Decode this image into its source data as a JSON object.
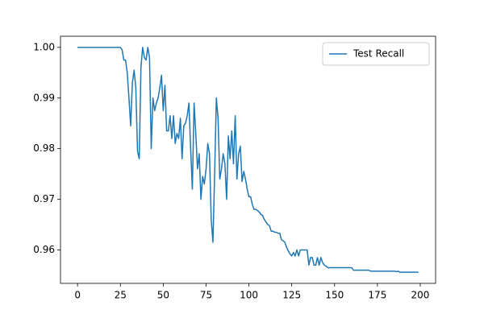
{
  "chart_data": {
    "type": "line",
    "x": [
      0,
      1,
      2,
      3,
      4,
      5,
      6,
      7,
      8,
      9,
      10,
      11,
      12,
      13,
      14,
      15,
      16,
      17,
      18,
      19,
      20,
      21,
      22,
      23,
      24,
      25,
      26,
      27,
      28,
      29,
      30,
      31,
      32,
      33,
      34,
      35,
      36,
      37,
      38,
      39,
      40,
      41,
      42,
      43,
      44,
      45,
      46,
      47,
      48,
      49,
      50,
      51,
      52,
      53,
      54,
      55,
      56,
      57,
      58,
      59,
      60,
      61,
      62,
      63,
      64,
      65,
      66,
      67,
      68,
      69,
      70,
      71,
      72,
      73,
      74,
      75,
      76,
      77,
      78,
      79,
      80,
      81,
      82,
      83,
      84,
      85,
      86,
      87,
      88,
      89,
      90,
      91,
      92,
      93,
      94,
      95,
      96,
      97,
      98,
      99,
      100,
      101,
      102,
      103,
      104,
      105,
      106,
      107,
      108,
      109,
      110,
      111,
      112,
      113,
      114,
      115,
      116,
      117,
      118,
      119,
      120,
      121,
      122,
      123,
      124,
      125,
      126,
      127,
      128,
      129,
      130,
      131,
      132,
      133,
      134,
      135,
      136,
      137,
      138,
      139,
      140,
      141,
      142,
      143,
      144,
      145,
      146,
      147,
      148,
      149,
      150,
      151,
      152,
      153,
      154,
      155,
      156,
      157,
      158,
      159,
      160,
      161,
      162,
      163,
      164,
      165,
      166,
      167,
      168,
      169,
      170,
      171,
      172,
      173,
      174,
      175,
      176,
      177,
      178,
      179,
      180,
      181,
      182,
      183,
      184,
      185,
      186,
      187,
      188,
      189,
      190,
      191,
      192,
      193,
      194,
      195,
      196,
      197,
      198,
      199
    ],
    "series": [
      {
        "name": "Test Recall",
        "color": "#1f77b4",
        "values": [
          1,
          1,
          1,
          1,
          1,
          1,
          1,
          1,
          1,
          1,
          1,
          1,
          1,
          1,
          1,
          1,
          1,
          1,
          1,
          1,
          1,
          1,
          1,
          1,
          1,
          1,
          0.9995,
          0.9975,
          0.9975,
          0.995,
          0.99,
          0.9845,
          0.993,
          0.9955,
          0.992,
          0.9795,
          0.978,
          0.996,
          1,
          0.998,
          0.9975,
          1,
          0.998,
          0.98,
          0.99,
          0.9875,
          0.989,
          0.99,
          0.992,
          0.9945,
          0.9875,
          0.9925,
          0.9835,
          0.9835,
          0.9865,
          0.982,
          0.9865,
          0.981,
          0.983,
          0.982,
          0.986,
          0.978,
          0.9845,
          0.985,
          0.9865,
          0.989,
          0.98,
          0.972,
          0.989,
          0.983,
          0.976,
          0.979,
          0.97,
          0.9745,
          0.973,
          0.976,
          0.981,
          0.979,
          0.966,
          0.9615,
          0.975,
          0.99,
          0.986,
          0.974,
          0.976,
          0.979,
          0.977,
          0.97,
          0.9825,
          0.978,
          0.9835,
          0.977,
          0.9865,
          0.974,
          0.979,
          0.9805,
          0.9735,
          0.9755,
          0.974,
          0.972,
          0.9705,
          0.9705,
          0.969,
          0.968,
          0.968,
          0.9678,
          0.9675,
          0.967,
          0.9668,
          0.966,
          0.9655,
          0.965,
          0.9648,
          0.9637,
          0.9637,
          0.9635,
          0.9635,
          0.9633,
          0.9633,
          0.962,
          0.9618,
          0.9615,
          0.9605,
          0.9598,
          0.9592,
          0.9588,
          0.9595,
          0.9588,
          0.96,
          0.9588,
          0.96,
          0.96,
          0.96,
          0.96,
          0.96,
          0.957,
          0.9585,
          0.9585,
          0.957,
          0.957,
          0.9585,
          0.957,
          0.9585,
          0.9575,
          0.957,
          0.9568,
          0.9565,
          0.9565,
          0.9565,
          0.9565,
          0.9565,
          0.9565,
          0.9565,
          0.9565,
          0.9565,
          0.9565,
          0.9565,
          0.9565,
          0.9565,
          0.9565,
          0.9565,
          0.956,
          0.956,
          0.956,
          0.956,
          0.956,
          0.956,
          0.956,
          0.956,
          0.956,
          0.956,
          0.9558,
          0.9558,
          0.9558,
          0.9558,
          0.9558,
          0.9558,
          0.9558,
          0.9558,
          0.9558,
          0.9558,
          0.9558,
          0.9558,
          0.9558,
          0.9558,
          0.9558,
          0.9557,
          0.9558,
          0.9556,
          0.9556,
          0.9556,
          0.9556,
          0.9556,
          0.9556,
          0.9556,
          0.9556,
          0.9556,
          0.9556,
          0.9556,
          0.9556
        ]
      }
    ],
    "xlim": [
      -9.95,
      208.95
    ],
    "xticks": [
      0,
      25,
      50,
      75,
      100,
      125,
      150,
      175,
      200
    ],
    "ylim": [
      0.9534,
      1.0022
    ],
    "yticks": [
      0.96,
      0.97,
      0.98,
      0.99,
      {
        "value": 1,
        "label": "1.00"
      }
    ],
    "grid": false,
    "legend": "upper right"
  }
}
